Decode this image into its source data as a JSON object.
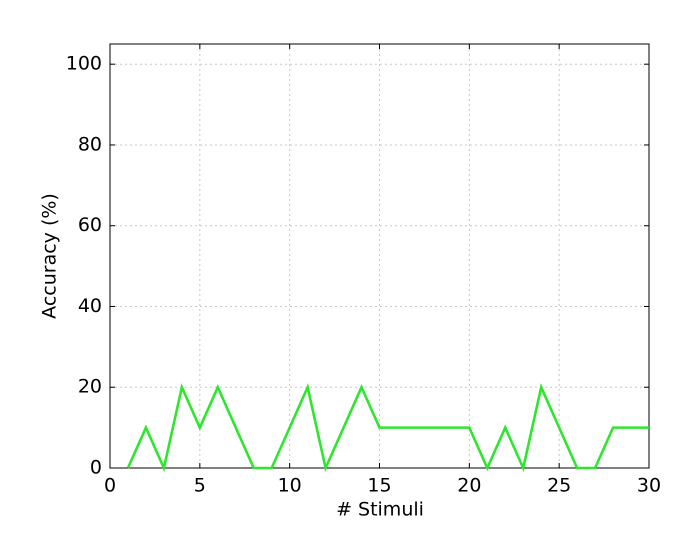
{
  "chart_data": {
    "type": "line",
    "xlabel": "# Stimuli",
    "ylabel": "Accuracy (%)",
    "x": [
      1,
      2,
      3,
      4,
      5,
      6,
      7,
      8,
      9,
      10,
      11,
      12,
      13,
      14,
      15,
      16,
      17,
      18,
      19,
      20,
      21,
      22,
      23,
      24,
      25,
      26,
      27,
      28,
      29,
      30
    ],
    "series": [
      {
        "color": "#2ee62e",
        "values": [
          0,
          10,
          0,
          20,
          10,
          20,
          10,
          0,
          0,
          10,
          20,
          0,
          10,
          20,
          10,
          10,
          10,
          10,
          10,
          10,
          0,
          10,
          0,
          20,
          10,
          0,
          0,
          10,
          10,
          10
        ]
      }
    ],
    "xlim": [
      0,
      30
    ],
    "xticks": [
      0,
      5,
      10,
      15,
      20,
      25,
      30
    ],
    "ylim": [
      0,
      105
    ],
    "yticks": [
      0,
      20,
      40,
      60,
      80,
      100
    ],
    "grid": true
  }
}
